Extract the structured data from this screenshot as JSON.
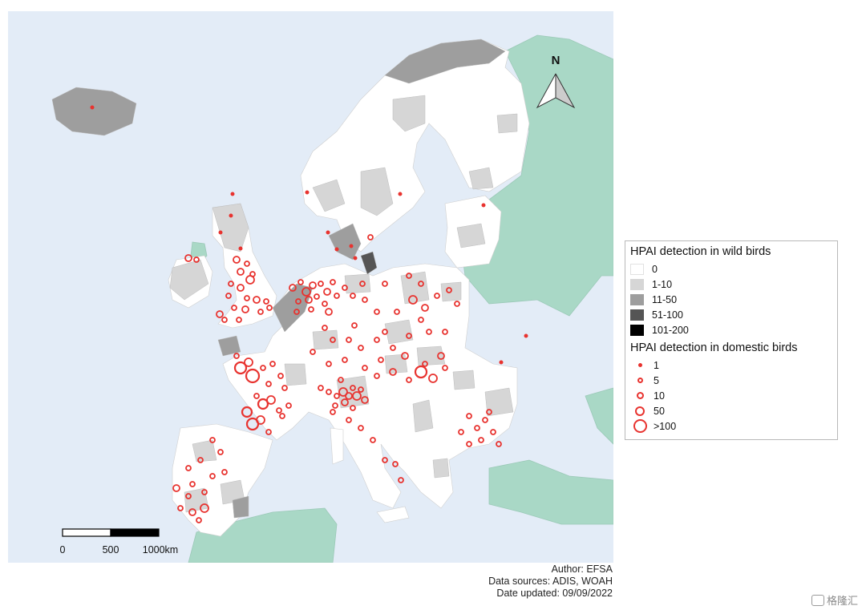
{
  "map": {
    "north_label": "N",
    "scale_labels": [
      "0",
      "500",
      "1000km"
    ]
  },
  "legend": {
    "wild_title": "HPAI detection in wild birds",
    "wild_classes": [
      {
        "label": "0",
        "color": "#ffffff"
      },
      {
        "label": "1-10",
        "color": "#d6d6d6"
      },
      {
        "label": "11-50",
        "color": "#9e9e9e"
      },
      {
        "label": "51-100",
        "color": "#555555"
      },
      {
        "label": "101-200",
        "color": "#000000"
      }
    ],
    "domestic_title": "HPAI detection in domestic birds",
    "domestic_classes": [
      {
        "label": "1"
      },
      {
        "label": "5"
      },
      {
        "label": "10"
      },
      {
        "label": "50"
      },
      {
        "label": ">100"
      }
    ]
  },
  "credits": {
    "author": "Author: EFSA",
    "sources": "Data sources: ADIS, WOAH",
    "updated": "Date updated: 09/09/2022"
  },
  "watermark": {
    "text": "格隆汇"
  },
  "colors": {
    "sea": "#e3ecf7",
    "non_eu_land": "#a9d8c6",
    "outbreak": "#e8332f"
  }
}
